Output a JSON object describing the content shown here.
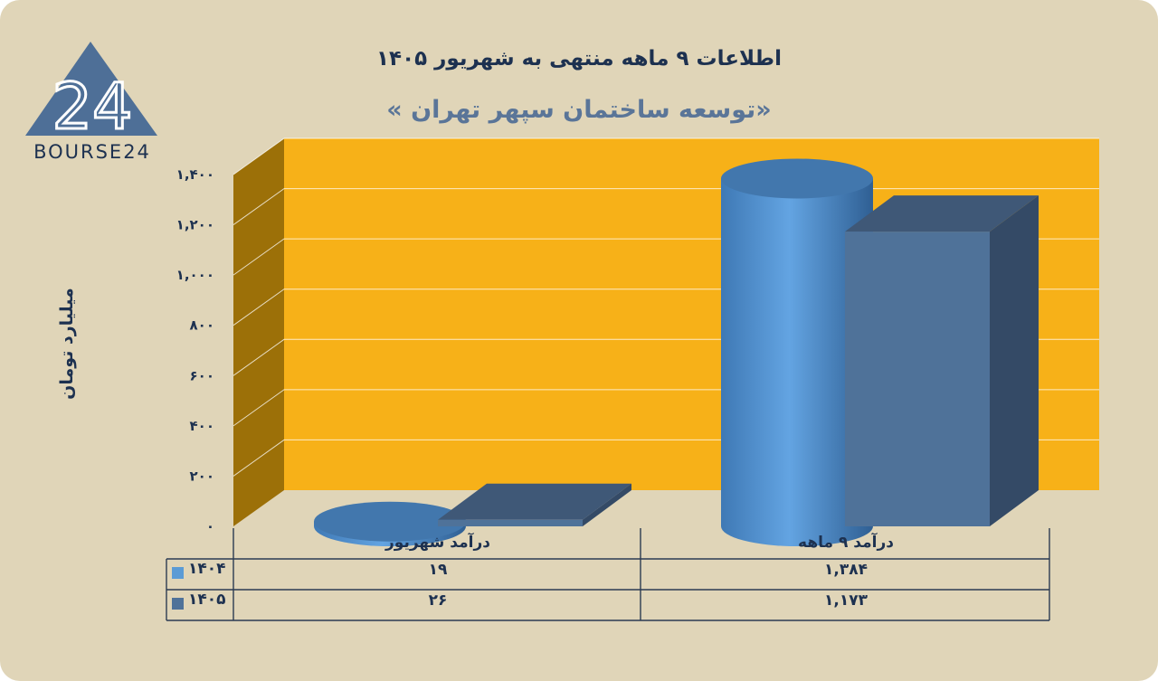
{
  "logo": {
    "text": "BOURSE24",
    "mark": "24"
  },
  "chart_data": {
    "type": "bar",
    "title": "اطلاعات ۹ ماهه منتهی به شهریور ۱۴۰۵",
    "subtitle": "«توسعه ساختمان سپهر تهران »",
    "ylabel": "میلیارد تومان",
    "ylim": [
      0,
      1400
    ],
    "yticks": [
      "۰",
      "۲۰۰",
      "۴۰۰",
      "۶۰۰",
      "۸۰۰",
      "۱,۰۰۰",
      "۱,۲۰۰",
      "۱,۴۰۰"
    ],
    "categories": [
      "درآمد شهریور",
      "درآمد ۹ ماهه"
    ],
    "series": [
      {
        "name": "۱۴۰۴",
        "shape": "cylinder",
        "color": "#5b9bd5",
        "values": [
          19,
          1384
        ],
        "labels": [
          "۱۹",
          "۱,۳۸۴"
        ]
      },
      {
        "name": "۱۴۰۵",
        "shape": "box",
        "color": "#4f7299",
        "values": [
          26,
          1173
        ],
        "labels": [
          "۲۶",
          "۱,۱۷۳"
        ]
      }
    ],
    "colors": {
      "wall": "#f7b118",
      "side_wall": "#9c7008",
      "background": "#e0d5b8",
      "text": "#1d3150"
    }
  }
}
